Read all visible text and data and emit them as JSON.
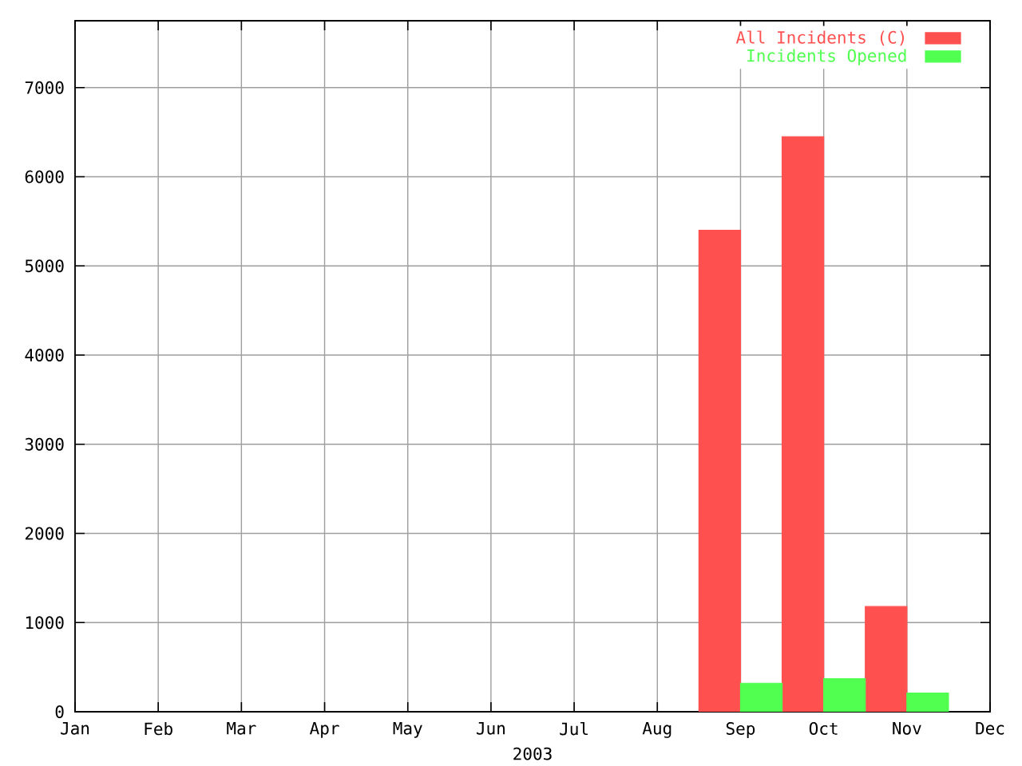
{
  "chart_data": {
    "type": "bar",
    "xlabel": "2003",
    "categories": [
      "Jan",
      "Feb",
      "Mar",
      "Apr",
      "May",
      "Jun",
      "Jul",
      "Aug",
      "Sep",
      "Oct",
      "Nov",
      "Dec"
    ],
    "series": [
      {
        "name": "All Incidents (C)",
        "color": "#ff5050",
        "values": [
          null,
          null,
          null,
          null,
          null,
          null,
          null,
          null,
          5400,
          6450,
          1180,
          null
        ]
      },
      {
        "name": "Incidents Opened",
        "color": "#50ff50",
        "values": [
          null,
          null,
          null,
          null,
          null,
          null,
          null,
          null,
          320,
          370,
          210,
          null
        ]
      }
    ],
    "ylim": [
      0,
      7750
    ],
    "yticks": [
      0,
      1000,
      2000,
      3000,
      4000,
      5000,
      6000,
      7000
    ],
    "grid": true,
    "legend": "top right"
  }
}
